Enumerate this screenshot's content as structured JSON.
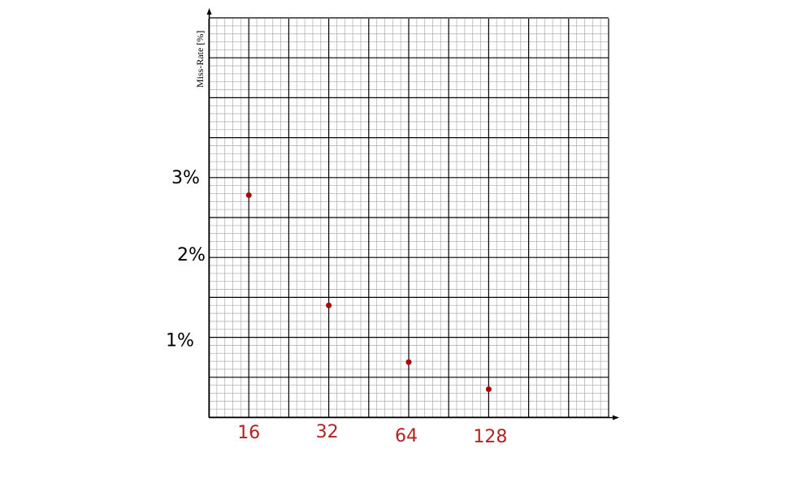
{
  "chart_data": {
    "type": "scatter",
    "title": "",
    "xlabel": "",
    "ylabel": "Miss-Rate [%]",
    "x_scale": "log2",
    "x_ticks": [
      "16",
      "32",
      "64",
      "128"
    ],
    "y_ticks": [
      "1%",
      "2%",
      "3%"
    ],
    "points": [
      {
        "x": 16,
        "y": 2.78
      },
      {
        "x": 32,
        "y": 1.4
      },
      {
        "x": 64,
        "y": 0.69
      },
      {
        "x": 128,
        "y": 0.35
      }
    ],
    "grid": true,
    "marker_color": "#b00000",
    "xtick_color": "#b22222"
  }
}
